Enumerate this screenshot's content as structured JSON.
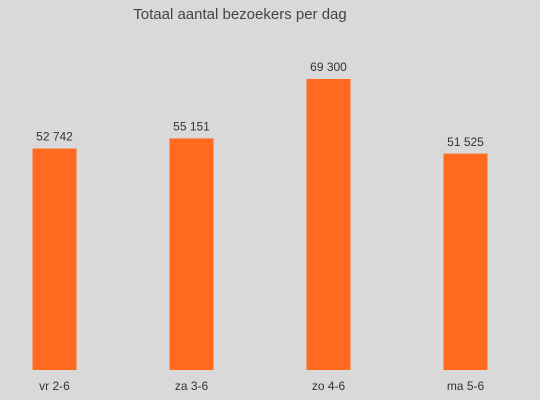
{
  "chart_data": {
    "type": "bar",
    "title": "Totaal aantal bezoekers per dag",
    "categories": [
      "vr 2-6",
      "za 3-6",
      "zo 4-6",
      "ma 5-6"
    ],
    "values": [
      52742,
      55151,
      69300,
      51525
    ],
    "value_labels": [
      "52 742",
      "55 151",
      "69 300",
      "51 525"
    ],
    "color": "#ff6a1f"
  }
}
